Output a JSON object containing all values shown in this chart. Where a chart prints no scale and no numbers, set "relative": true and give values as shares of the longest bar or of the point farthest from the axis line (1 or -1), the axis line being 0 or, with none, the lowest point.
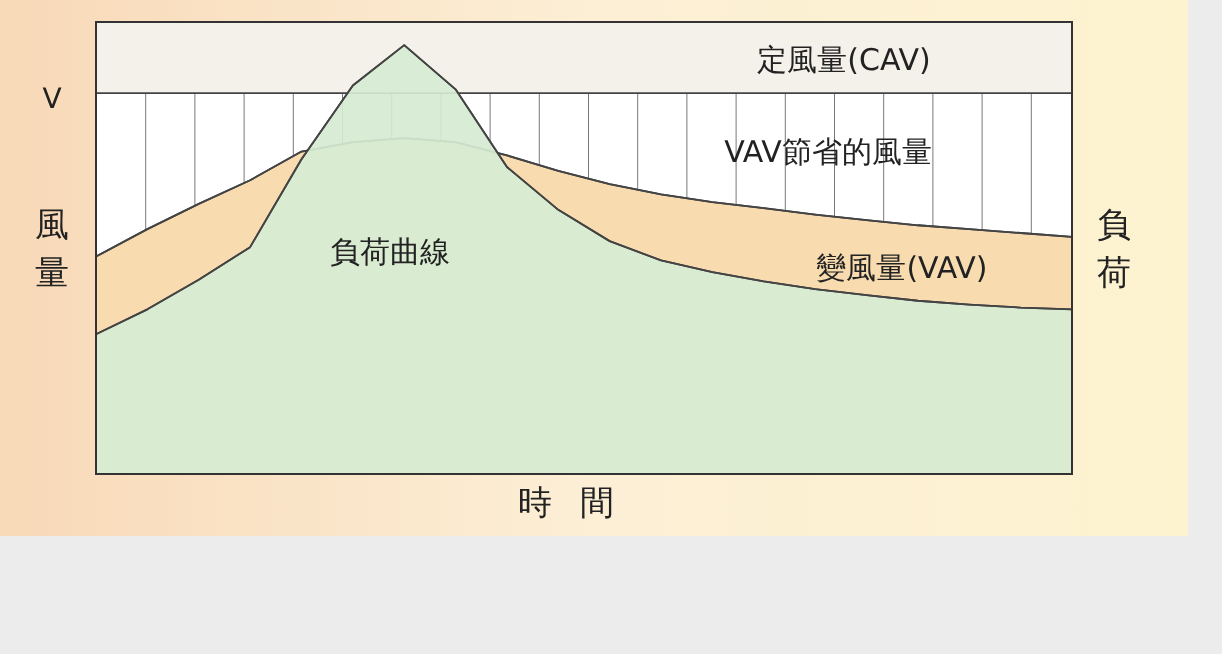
{
  "chart_data": {
    "type": "area",
    "relative": true,
    "xlabel": "時間",
    "ylabel": "風量",
    "y2label": "負荷",
    "categories": [
      null,
      null,
      null,
      null,
      null,
      null,
      null,
      null,
      null,
      null,
      null,
      null,
      null,
      null,
      null,
      null,
      null,
      null,
      null,
      null
    ],
    "series": [
      {
        "name": "定風量(CAV)",
        "color": "#f4f1ea",
        "values": [
          0.888,
          0.888,
          0.888,
          0.888,
          0.888,
          0.888,
          0.888,
          0.888,
          0.888,
          0.888,
          0.888,
          0.888,
          0.888,
          0.888,
          0.888,
          0.888,
          0.888,
          0.888,
          0.888,
          0.888
        ]
      },
      {
        "name": "變風量(VAV)",
        "color": "#f8dcb0",
        "values": [
          0.507,
          0.571,
          0.63,
          0.685,
          0.752,
          0.774,
          0.783,
          0.774,
          0.743,
          0.707,
          0.676,
          0.652,
          0.634,
          0.62,
          0.605,
          0.592,
          0.58,
          0.571,
          0.562,
          0.553
        ]
      },
      {
        "name": "負荷曲線",
        "color": "#d6ebd2",
        "values": [
          0.326,
          0.384,
          0.453,
          0.529,
          0.734,
          0.906,
          1,
          0.897,
          0.716,
          0.616,
          0.543,
          0.498,
          0.471,
          0.449,
          0.431,
          0.417,
          0.404,
          0.395,
          0.388,
          0.384
        ]
      }
    ],
    "annotations": [
      "V",
      "VAV節省的風量"
    ]
  }
}
